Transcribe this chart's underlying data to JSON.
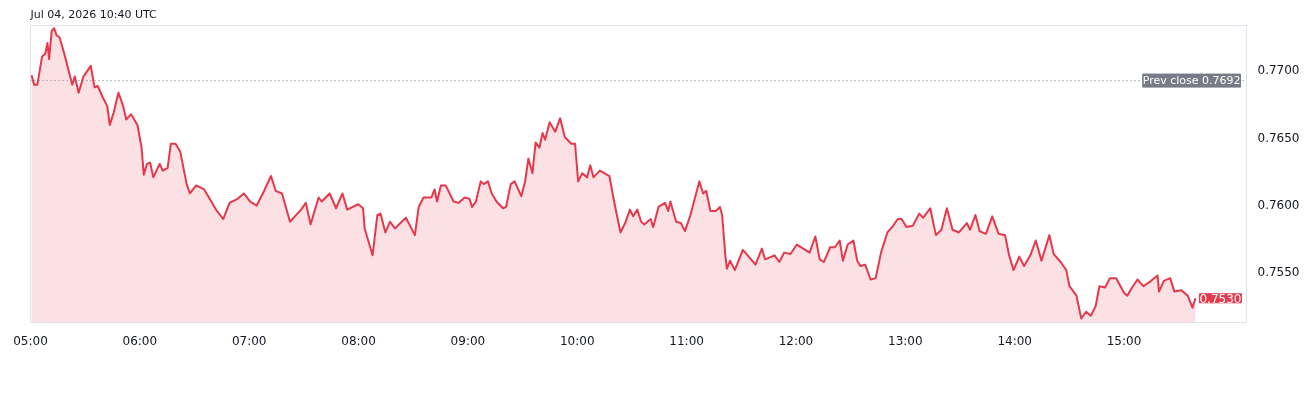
{
  "chart_data": {
    "type": "area",
    "annotations": [
      "Jul 04, 2026 10:40 UTC",
      {
        "text": "0.7530",
        "x": 15.653,
        "y": 0.753
      }
    ],
    "x": [
      5.01,
      5.033,
      5.063,
      5.106,
      5.135,
      5.155,
      5.17,
      5.194,
      5.216,
      5.237,
      5.266,
      5.309,
      5.353,
      5.382,
      5.405,
      5.44,
      5.484,
      5.551,
      5.586,
      5.615,
      5.658,
      5.702,
      5.725,
      5.76,
      5.804,
      5.847,
      5.876,
      5.92,
      5.978,
      6.016,
      6.036,
      6.065,
      6.094,
      6.123,
      6.181,
      6.21,
      6.254,
      6.283,
      6.327,
      6.37,
      6.428,
      6.458,
      6.515,
      6.588,
      6.632,
      6.704,
      6.763,
      6.82,
      6.894,
      6.951,
      7.009,
      7.068,
      7.125,
      7.199,
      7.242,
      7.3,
      7.373,
      7.474,
      7.518,
      7.561,
      7.635,
      7.663,
      7.736,
      7.794,
      7.853,
      7.896,
      7.997,
      8.041,
      8.056,
      8.128,
      8.172,
      8.201,
      8.245,
      8.288,
      8.332,
      8.433,
      8.515,
      8.55,
      8.594,
      8.666,
      8.695,
      8.718,
      8.753,
      8.797,
      8.869,
      8.913,
      8.971,
      9.015,
      9.038,
      9.073,
      9.117,
      9.145,
      9.183,
      9.218,
      9.261,
      9.32,
      9.349,
      9.392,
      9.427,
      9.488,
      9.523,
      9.553,
      9.59,
      9.619,
      9.654,
      9.683,
      9.706,
      9.747,
      9.799,
      9.843,
      9.886,
      9.945,
      9.98,
      10.008,
      10.046,
      10.09,
      10.119,
      10.148,
      10.206,
      10.25,
      10.294,
      10.337,
      10.395,
      10.438,
      10.482,
      10.511,
      10.549,
      10.584,
      10.613,
      10.671,
      10.695,
      10.743,
      10.802,
      10.831,
      10.852,
      10.904,
      10.947,
      10.985,
      11.035,
      11.116,
      11.151,
      11.179,
      11.218,
      11.266,
      11.305,
      11.325,
      11.354,
      11.368,
      11.397,
      11.441,
      11.514,
      11.558,
      11.63,
      11.688,
      11.717,
      11.804,
      11.848,
      11.892,
      11.95,
      12.008,
      12.066,
      12.124,
      12.177,
      12.217,
      12.255,
      12.313,
      12.356,
      12.4,
      12.429,
      12.473,
      12.525,
      12.56,
      12.589,
      12.633,
      12.682,
      12.729,
      12.778,
      12.836,
      12.879,
      12.932,
      12.966,
      13.01,
      13.068,
      13.127,
      13.164,
      13.228,
      13.28,
      13.33,
      13.38,
      13.432,
      13.49,
      13.563,
      13.592,
      13.641,
      13.679,
      13.737,
      13.795,
      13.853,
      13.912,
      13.949,
      13.99,
      14.042,
      14.086,
      14.143,
      14.193,
      14.245,
      14.318,
      14.356,
      14.42,
      14.472,
      14.501,
      14.565,
      14.609,
      14.653,
      14.696,
      14.74,
      14.775,
      14.827,
      14.871,
      14.928,
      15.001,
      15.03,
      15.074,
      15.123,
      15.176,
      15.248,
      15.306,
      15.32,
      15.364,
      15.422,
      15.46,
      15.524,
      15.582,
      15.626,
      15.653
    ],
    "series": [
      {
        "color": "#e5394b",
        "values": [
          0.7696,
          0.7689,
          0.7689,
          0.771,
          0.7712,
          0.772,
          0.7708,
          0.7729,
          0.7731,
          0.7726,
          0.7724,
          0.7712,
          0.7698,
          0.7689,
          0.7695,
          0.7683,
          0.7695,
          0.7703,
          0.7687,
          0.7688,
          0.768,
          0.7673,
          0.7659,
          0.7668,
          0.7683,
          0.7673,
          0.7663,
          0.7667,
          0.7659,
          0.7642,
          0.7622,
          0.763,
          0.7631,
          0.762,
          0.763,
          0.7625,
          0.7627,
          0.7645,
          0.7645,
          0.7639,
          0.7615,
          0.7608,
          0.7614,
          0.7611,
          0.7605,
          0.7595,
          0.7589,
          0.7601,
          0.7604,
          0.7608,
          0.7602,
          0.7599,
          0.7608,
          0.7621,
          0.761,
          0.7608,
          0.7587,
          0.7596,
          0.7601,
          0.7585,
          0.7605,
          0.7602,
          0.7608,
          0.7597,
          0.7608,
          0.7596,
          0.76,
          0.7597,
          0.7582,
          0.7562,
          0.7592,
          0.7593,
          0.7579,
          0.7587,
          0.7582,
          0.759,
          0.7577,
          0.7598,
          0.7605,
          0.7605,
          0.7611,
          0.7602,
          0.7614,
          0.7614,
          0.7602,
          0.7601,
          0.7605,
          0.7604,
          0.7598,
          0.7602,
          0.7617,
          0.7615,
          0.7617,
          0.7608,
          0.7602,
          0.7597,
          0.7598,
          0.7615,
          0.7617,
          0.7606,
          0.7617,
          0.7634,
          0.7623,
          0.7646,
          0.7642,
          0.7653,
          0.7648,
          0.7661,
          0.7654,
          0.7664,
          0.765,
          0.7645,
          0.7645,
          0.7617,
          0.7623,
          0.762,
          0.7629,
          0.762,
          0.7625,
          0.7623,
          0.7621,
          0.7602,
          0.7579,
          0.7586,
          0.7596,
          0.7591,
          0.7596,
          0.7587,
          0.7585,
          0.7589,
          0.7583,
          0.7598,
          0.7601,
          0.7595,
          0.7602,
          0.7587,
          0.7586,
          0.758,
          0.7592,
          0.7617,
          0.7608,
          0.761,
          0.7595,
          0.7595,
          0.7598,
          0.7592,
          0.7562,
          0.7552,
          0.7558,
          0.7551,
          0.7566,
          0.7562,
          0.7555,
          0.7567,
          0.7559,
          0.7562,
          0.7557,
          0.7564,
          0.7563,
          0.757,
          0.7567,
          0.7564,
          0.7576,
          0.7559,
          0.7557,
          0.7568,
          0.7568,
          0.7573,
          0.7558,
          0.757,
          0.7573,
          0.7558,
          0.7554,
          0.7555,
          0.7544,
          0.7545,
          0.7564,
          0.7579,
          0.7583,
          0.7589,
          0.7589,
          0.7583,
          0.7584,
          0.7593,
          0.759,
          0.7597,
          0.7577,
          0.7581,
          0.7597,
          0.7581,
          0.7579,
          0.7586,
          0.7581,
          0.7592,
          0.758,
          0.7578,
          0.7591,
          0.7578,
          0.7577,
          0.7562,
          0.7551,
          0.7561,
          0.7554,
          0.7562,
          0.7573,
          0.7558,
          0.7577,
          0.7563,
          0.7557,
          0.7551,
          0.7539,
          0.7532,
          0.7515,
          0.752,
          0.7517,
          0.7524,
          0.7539,
          0.7538,
          0.7545,
          0.7545,
          0.7534,
          0.7532,
          0.7538,
          0.7544,
          0.7539,
          0.7543,
          0.7547,
          0.7535,
          0.7543,
          0.7545,
          0.7535,
          0.7536,
          0.7532,
          0.7523,
          0.753
        ]
      }
    ],
    "xlim": [
      5,
      16.12
    ],
    "ylim": [
      0.7512,
      0.7733
    ],
    "xticks": [
      {
        "value": 5,
        "label": "05:00"
      },
      {
        "value": 6,
        "label": "06:00"
      },
      {
        "value": 7,
        "label": "07:00"
      },
      {
        "value": 8,
        "label": "08:00"
      },
      {
        "value": 9,
        "label": "09:00"
      },
      {
        "value": 10,
        "label": "10:00"
      },
      {
        "value": 11,
        "label": "11:00"
      },
      {
        "value": 12,
        "label": "12:00"
      },
      {
        "value": 13,
        "label": "13:00"
      },
      {
        "value": 14,
        "label": "14:00"
      },
      {
        "value": 15,
        "label": "15:00"
      }
    ],
    "yticks": [
      {
        "value": 0.755,
        "label": "0.7550"
      },
      {
        "value": 0.76,
        "label": "0.7600"
      },
      {
        "value": 0.765,
        "label": "0.7650"
      },
      {
        "value": 0.77,
        "label": "0.7700"
      }
    ],
    "ref_lines": [
      {
        "axis": "y",
        "value": 0.7692,
        "label": "Prev close 0.7692",
        "color": "#787b86",
        "line_style": "dotted"
      }
    ],
    "grid": false
  }
}
